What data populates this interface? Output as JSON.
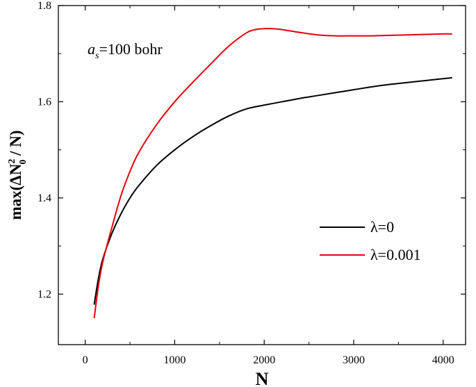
{
  "chart_data": {
    "type": "line",
    "title": "",
    "xlabel": "N",
    "ylabel_parts": {
      "prefix": "max(ΔN",
      "sup": "2",
      "sub": "0",
      "suffix": " / N)"
    },
    "xlim": [
      -300,
      4250
    ],
    "ylim": [
      1.095,
      1.8
    ],
    "xticks": [
      0,
      1000,
      2000,
      3000,
      4000
    ],
    "xtick_labels": [
      "0",
      "1000",
      "2000",
      "3000",
      "4000"
    ],
    "yticks": [
      1.2,
      1.4,
      1.6,
      1.8
    ],
    "ytick_labels": [
      "1.2",
      "1.4",
      "1.6",
      "1.8"
    ],
    "grid": false,
    "legend_position": "bottom-right",
    "annotation": {
      "var": "a",
      "sub": "s",
      "rest": "=100 bohr"
    },
    "series": [
      {
        "name": "λ=0",
        "color": "#000000",
        "x": [
          100,
          150,
          200,
          300,
          400,
          500,
          600,
          800,
          1000,
          1200,
          1400,
          1600,
          1800,
          2000,
          2200,
          2400,
          2600,
          2800,
          3000,
          3200,
          3400,
          3600,
          3800,
          4000,
          4100
        ],
        "y": [
          1.178,
          1.235,
          1.275,
          1.327,
          1.367,
          1.4,
          1.426,
          1.468,
          1.5,
          1.527,
          1.55,
          1.57,
          1.585,
          1.593,
          1.6,
          1.607,
          1.613,
          1.619,
          1.625,
          1.631,
          1.636,
          1.64,
          1.644,
          1.648,
          1.65
        ]
      },
      {
        "name": "λ=0.001",
        "color": "#e8000b",
        "x": [
          100,
          150,
          200,
          300,
          400,
          500,
          600,
          800,
          1000,
          1200,
          1400,
          1600,
          1800,
          1900,
          2000,
          2050,
          2100,
          2200,
          2400,
          2600,
          2800,
          3000,
          3200,
          3400,
          3600,
          3800,
          4000,
          4100
        ],
        "y": [
          1.15,
          1.22,
          1.27,
          1.34,
          1.405,
          1.455,
          1.495,
          1.553,
          1.6,
          1.64,
          1.678,
          1.715,
          1.743,
          1.75,
          1.752,
          1.752,
          1.752,
          1.75,
          1.744,
          1.739,
          1.737,
          1.737,
          1.737,
          1.738,
          1.739,
          1.74,
          1.741,
          1.741
        ]
      }
    ]
  }
}
